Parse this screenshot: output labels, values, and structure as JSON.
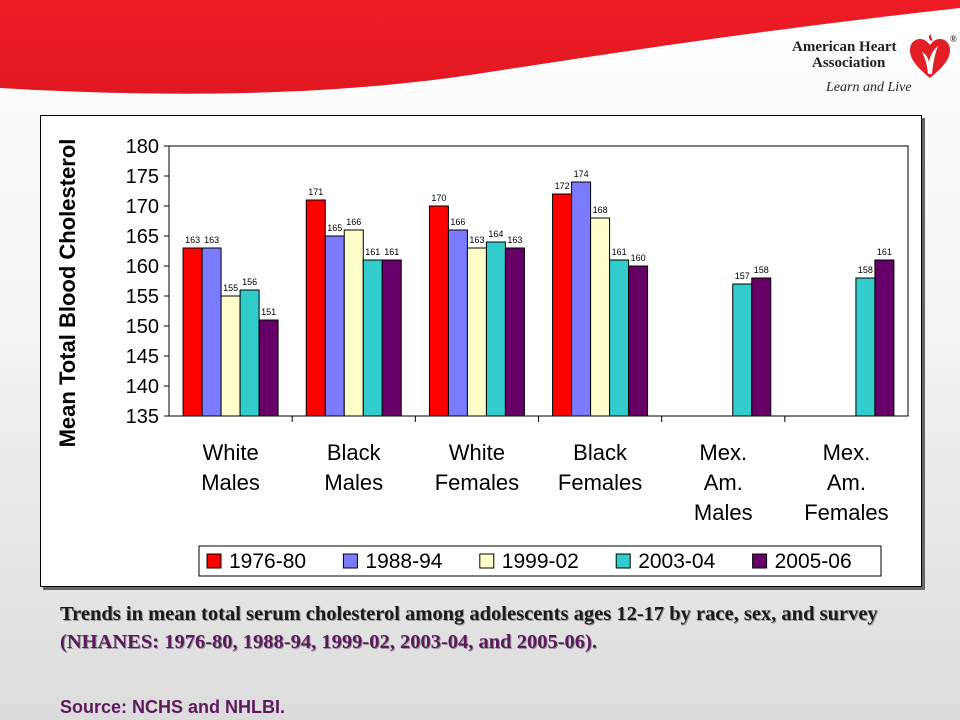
{
  "logo": {
    "line1": "American Heart",
    "line2": "Association",
    "tagline": "Learn and Live",
    "registered": "®"
  },
  "caption": {
    "main": "Trends in mean total serum cholesterol among adolescents ages 12-17 by race, sex, and survey ",
    "highlight": "(NHANES: 1976-80, 1988-94, 1999-02, 2003-04, and 2005-06).",
    "source": "Source: NCHS and NHLBI."
  },
  "colors": {
    "band": "#ee1c25",
    "grid": "#000000"
  },
  "chart_data": {
    "type": "bar",
    "ylabel": "Mean Total Blood Cholesterol",
    "xlabel": "",
    "ylim": [
      135,
      180
    ],
    "yticks": [
      135,
      140,
      145,
      150,
      155,
      160,
      165,
      170,
      175,
      180
    ],
    "categories": [
      [
        "White",
        "Males"
      ],
      [
        "Black",
        "Males"
      ],
      [
        "White",
        "Females"
      ],
      [
        "Black",
        "Females"
      ],
      [
        "Mex.",
        "Am.",
        "Males"
      ],
      [
        "Mex.",
        "Am.",
        "Females"
      ]
    ],
    "series": [
      {
        "name": "1976-80",
        "color": "#ff0000",
        "values": [
          163,
          171,
          170,
          172,
          null,
          null
        ]
      },
      {
        "name": "1988-94",
        "color": "#7b7bff",
        "values": [
          163,
          165,
          166,
          174,
          null,
          null
        ]
      },
      {
        "name": "1999-02",
        "color": "#ffffcc",
        "values": [
          155,
          166,
          163,
          168,
          null,
          null
        ]
      },
      {
        "name": "2003-04",
        "color": "#33cccc",
        "values": [
          156,
          161,
          164,
          161,
          157,
          158
        ]
      },
      {
        "name": "2005-06",
        "color": "#660066",
        "values": [
          151,
          161,
          163,
          160,
          158,
          161
        ]
      }
    ],
    "legend_position": "bottom",
    "grid": false
  }
}
